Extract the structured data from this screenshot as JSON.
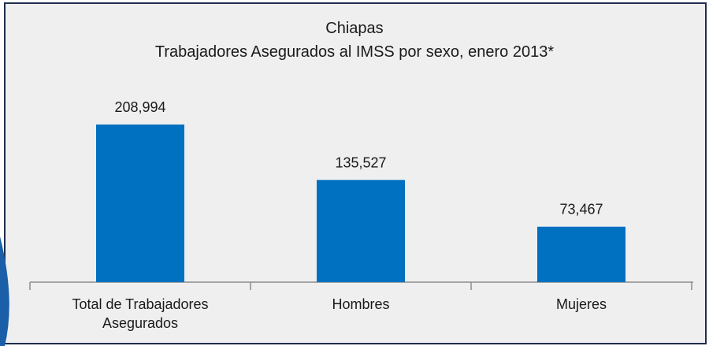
{
  "chart_data": {
    "type": "bar",
    "title": "Chiapas",
    "subtitle": "Trabajadores Asegurados al IMSS por sexo, enero 2013*",
    "categories": [
      "Total de Trabajadores Asegurados",
      "Hombres",
      "Mujeres"
    ],
    "values": [
      208994,
      135527,
      73467
    ],
    "value_labels": [
      "208,994",
      "135,527",
      "73,467"
    ],
    "color": "#0070c0"
  }
}
